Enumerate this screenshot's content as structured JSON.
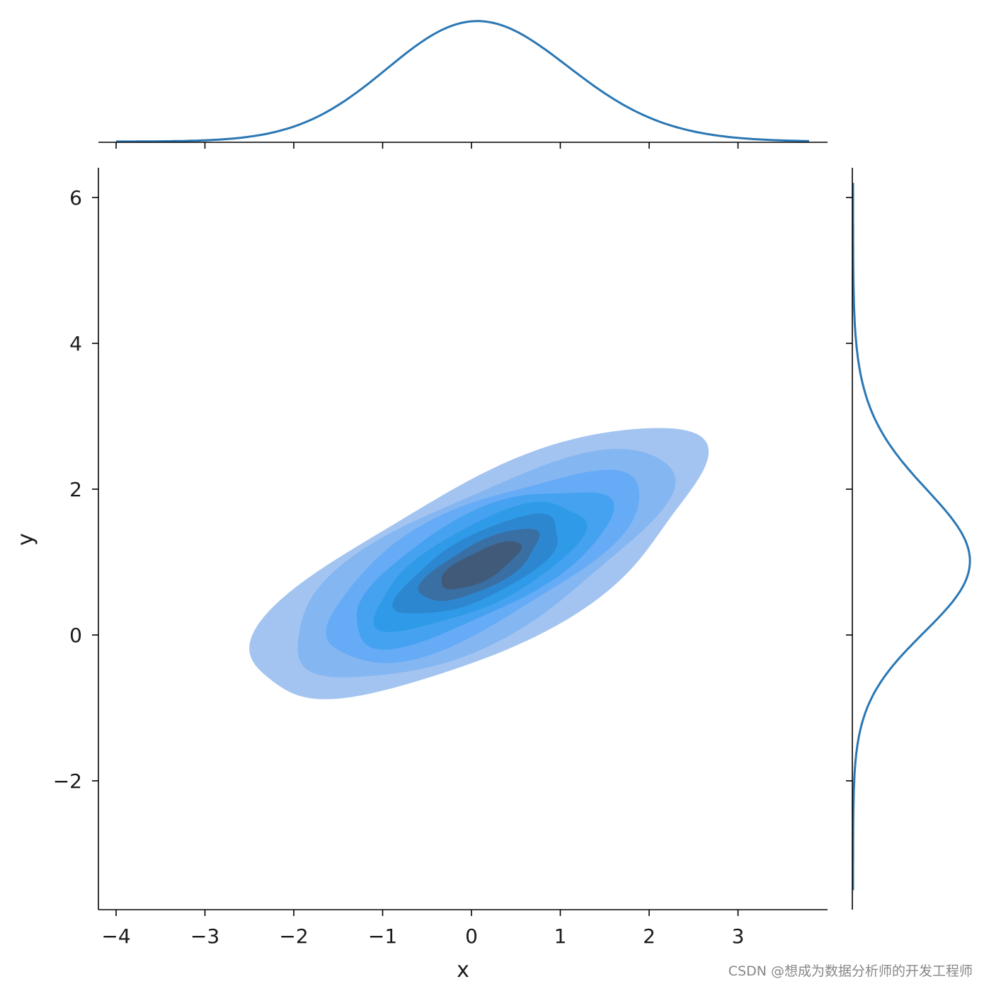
{
  "chart_data": {
    "type": "kde-joint",
    "xlabel": "x",
    "ylabel": "y",
    "xlim": [
      -4.2,
      4.0
    ],
    "ylim": [
      -3.7,
      6.4
    ],
    "xticks": [
      -4,
      -3,
      -2,
      -1,
      0,
      1,
      2,
      3
    ],
    "yticks": [
      -2,
      0,
      2,
      4,
      6
    ],
    "xtick_labels": [
      "−4",
      "−3",
      "−2",
      "−1",
      "0",
      "1",
      "2",
      "3"
    ],
    "ytick_labels": [
      "−2",
      "0",
      "2",
      "4",
      "6"
    ],
    "contour_center": [
      0.1,
      0.95
    ],
    "contour_levels": [
      {
        "color": "#a3c4f0",
        "rx": 2.8,
        "ry": 1.15
      },
      {
        "color": "#84b6f2",
        "rx": 2.35,
        "ry": 0.98
      },
      {
        "color": "#66abf5",
        "rx": 1.95,
        "ry": 0.82
      },
      {
        "color": "#45a2f0",
        "rx": 1.6,
        "ry": 0.68
      },
      {
        "color": "#2f9be8",
        "rx": 1.3,
        "ry": 0.55
      },
      {
        "color": "#2d87d0",
        "rx": 1.02,
        "ry": 0.43
      },
      {
        "color": "#3a6fa4",
        "rx": 0.74,
        "ry": 0.31
      },
      {
        "color": "#415a7a",
        "rx": 0.5,
        "ry": 0.2
      }
    ],
    "contour_angle_deg": 27,
    "x_marginal": {
      "mean": 0.0,
      "sd": 1.0,
      "range": [
        -4.0,
        3.8
      ]
    },
    "y_marginal": {
      "mean": 0.95,
      "sd": 1.0,
      "range": [
        -3.5,
        6.2
      ]
    },
    "line_color": "#2a77b4"
  },
  "watermark": "CSDN @想成为数据分析师的开发工程师"
}
